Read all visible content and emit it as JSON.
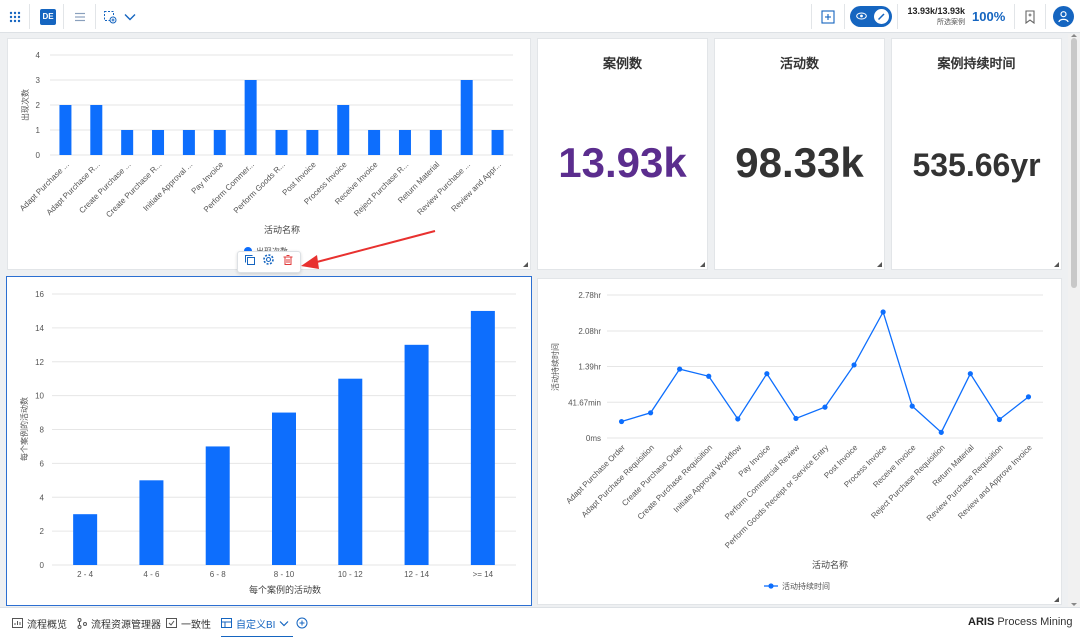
{
  "header": {
    "app_badge": "DE",
    "cases_count": "13.93k/13.93k",
    "cases_label": "所选案例",
    "percentage": "100%"
  },
  "kpis": [
    {
      "title": "案例数",
      "value": "13.93k",
      "color": "#5b2d8e"
    },
    {
      "title": "活动数",
      "value": "98.33k",
      "color": "#333333"
    },
    {
      "title": "案例持续时间",
      "value": "535.66yr",
      "color": "#333333"
    }
  ],
  "legend_truncated": "出现次数",
  "chart_data": [
    {
      "type": "bar",
      "xlabel": "活动名称",
      "ylabel": "出现次数",
      "ylim": [
        0,
        4
      ],
      "yticks": [
        "0",
        "1",
        "2",
        "3",
        "4"
      ],
      "categories": [
        "Adapt Purchase ...",
        "Adapt Purchase R...",
        "Create Purchase ...",
        "Create Purchase R...",
        "Initiate Approval ...",
        "Pay Invoice",
        "Perform Commer...",
        "Perform Goods R...",
        "Post Invoice",
        "Process Invoice",
        "Receive Invoice",
        "Reject Purchase R...",
        "Return Material",
        "Review Purchase ...",
        "Review and Appr..."
      ],
      "values": [
        2,
        2,
        1,
        1,
        1,
        1,
        3,
        1,
        1,
        2,
        1,
        1,
        1,
        3,
        1
      ],
      "color": "#0d6efd"
    },
    {
      "type": "bar",
      "xlabel": "每个案例的活动数",
      "ylabel": "每个案例的活动数",
      "ylim": [
        0,
        16
      ],
      "yticks": [
        "0",
        "2",
        "4",
        "6",
        "8",
        "10",
        "12",
        "14",
        "16"
      ],
      "categories": [
        "2 - 4",
        "4 - 6",
        "6 - 8",
        "8 - 10",
        "10 - 12",
        "12 - 14",
        ">= 14"
      ],
      "values": [
        3,
        5,
        7,
        9,
        11,
        13,
        15
      ],
      "color": "#0d6efd"
    },
    {
      "type": "line",
      "xlabel": "活动名称",
      "ylabel": "活动持续时间",
      "legend": "活动持续时间",
      "ylim_hours": [
        0,
        2.78
      ],
      "yticks": [
        {
          "label": "0ms",
          "hours": 0
        },
        {
          "label": "41.67min",
          "hours": 0.6944
        },
        {
          "label": "1.39hr",
          "hours": 1.39
        },
        {
          "label": "2.08hr",
          "hours": 2.08
        },
        {
          "label": "2.78hr",
          "hours": 2.78
        }
      ],
      "categories": [
        "Adapt Purchase Order",
        "Adapt Purchase Requisition",
        "Create Purchase Order",
        "Create Purchase Requisition",
        "Initiate Approval Workflow",
        "Pay Invoice",
        "Perform Commercial Review",
        "Perform Goods Receipt or Service Entry",
        "Post Invoice",
        "Process Invoice",
        "Receive Invoice",
        "Reject Purchase Requisition",
        "Return Material",
        "Review Purchase Requisition",
        "Review and Approve Invoice"
      ],
      "values_hours": [
        0.32,
        0.49,
        1.34,
        1.2,
        0.37,
        1.25,
        0.38,
        0.6,
        1.42,
        2.45,
        0.62,
        0.11,
        1.25,
        0.36,
        0.8
      ],
      "color": "#0d6efd"
    }
  ],
  "bottom_tabs": [
    {
      "label": "流程概览",
      "icon": "chart-board-icon"
    },
    {
      "label": "流程资源管理器",
      "icon": "process-explorer-icon"
    },
    {
      "label": "一致性",
      "icon": "conformance-icon"
    },
    {
      "label": "自定义BI",
      "icon": "custom-bi-icon"
    }
  ],
  "brand": {
    "name": "ARIS",
    "product": "Process Mining"
  }
}
